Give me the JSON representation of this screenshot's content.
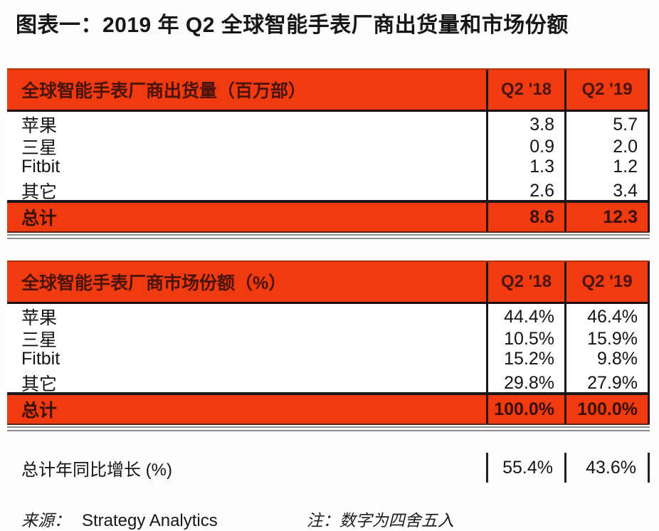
{
  "page": {
    "title": "图表一：2019 年 Q2 全球智能手表厂商出货量和市场份额"
  },
  "tables": [
    {
      "title": "全球智能手表厂商出货量（百万部）",
      "col1": "Q2 '18",
      "col2": "Q2 '19",
      "rows": [
        {
          "label": "苹果",
          "v1": "3.8",
          "v2": "5.7"
        },
        {
          "label": "三星",
          "v1": "0.9",
          "v2": "2.0"
        },
        {
          "label": "Fitbit",
          "v1": "1.3",
          "v2": "1.2"
        },
        {
          "label": "其它",
          "v1": "2.6",
          "v2": "3.4"
        }
      ],
      "total": {
        "label": "总计",
        "v1": "8.6",
        "v2": "12.3"
      }
    },
    {
      "title": "全球智能手表厂商市场份额（%）",
      "col1": "Q2 '18",
      "col2": "Q2 '19",
      "rows": [
        {
          "label": "苹果",
          "v1": "44.4%",
          "v2": "46.4%"
        },
        {
          "label": "三星",
          "v1": "10.5%",
          "v2": "15.9%"
        },
        {
          "label": "Fitbit",
          "v1": "15.2%",
          "v2": "9.8%"
        },
        {
          "label": "其它",
          "v1": "29.8%",
          "v2": "27.9%"
        }
      ],
      "total": {
        "label": "总计",
        "v1": "100.0%",
        "v2": "100.0%"
      }
    }
  ],
  "yoy": {
    "label": "总计年同比增长 (%)",
    "v1": "55.4%",
    "v2": "43.6%"
  },
  "footer": {
    "source_label": "来源：",
    "source_value": "Strategy Analytics",
    "note": "注：数字为四舍五入"
  },
  "colors": {
    "accent_red": "#F03A10",
    "header_text": "#4A140B",
    "divider_gray": "#8F8F8F"
  },
  "chart_data": [
    {
      "type": "table",
      "title": "全球智能手表厂商出货量（百万部）",
      "columns": [
        "厂商",
        "Q2 '18",
        "Q2 '19"
      ],
      "rows": [
        [
          "苹果",
          3.8,
          5.7
        ],
        [
          "三星",
          0.9,
          2.0
        ],
        [
          "Fitbit",
          1.3,
          1.2
        ],
        [
          "其它",
          2.6,
          3.4
        ]
      ],
      "total": [
        "总计",
        8.6,
        12.3
      ]
    },
    {
      "type": "table",
      "title": "全球智能手表厂商市场份额（%）",
      "columns": [
        "厂商",
        "Q2 '18",
        "Q2 '19"
      ],
      "rows": [
        [
          "苹果",
          "44.4%",
          "46.4%"
        ],
        [
          "三星",
          "10.5%",
          "15.9%"
        ],
        [
          "Fitbit",
          "15.2%",
          "9.8%"
        ],
        [
          "其它",
          "29.8%",
          "27.9%"
        ]
      ],
      "total": [
        "总计",
        "100.0%",
        "100.0%"
      ],
      "yoy_growth": [
        "总计年同比增长 (%)",
        "55.4%",
        "43.6%"
      ],
      "source": "Strategy Analytics",
      "note": "数字为四舍五入"
    }
  ]
}
